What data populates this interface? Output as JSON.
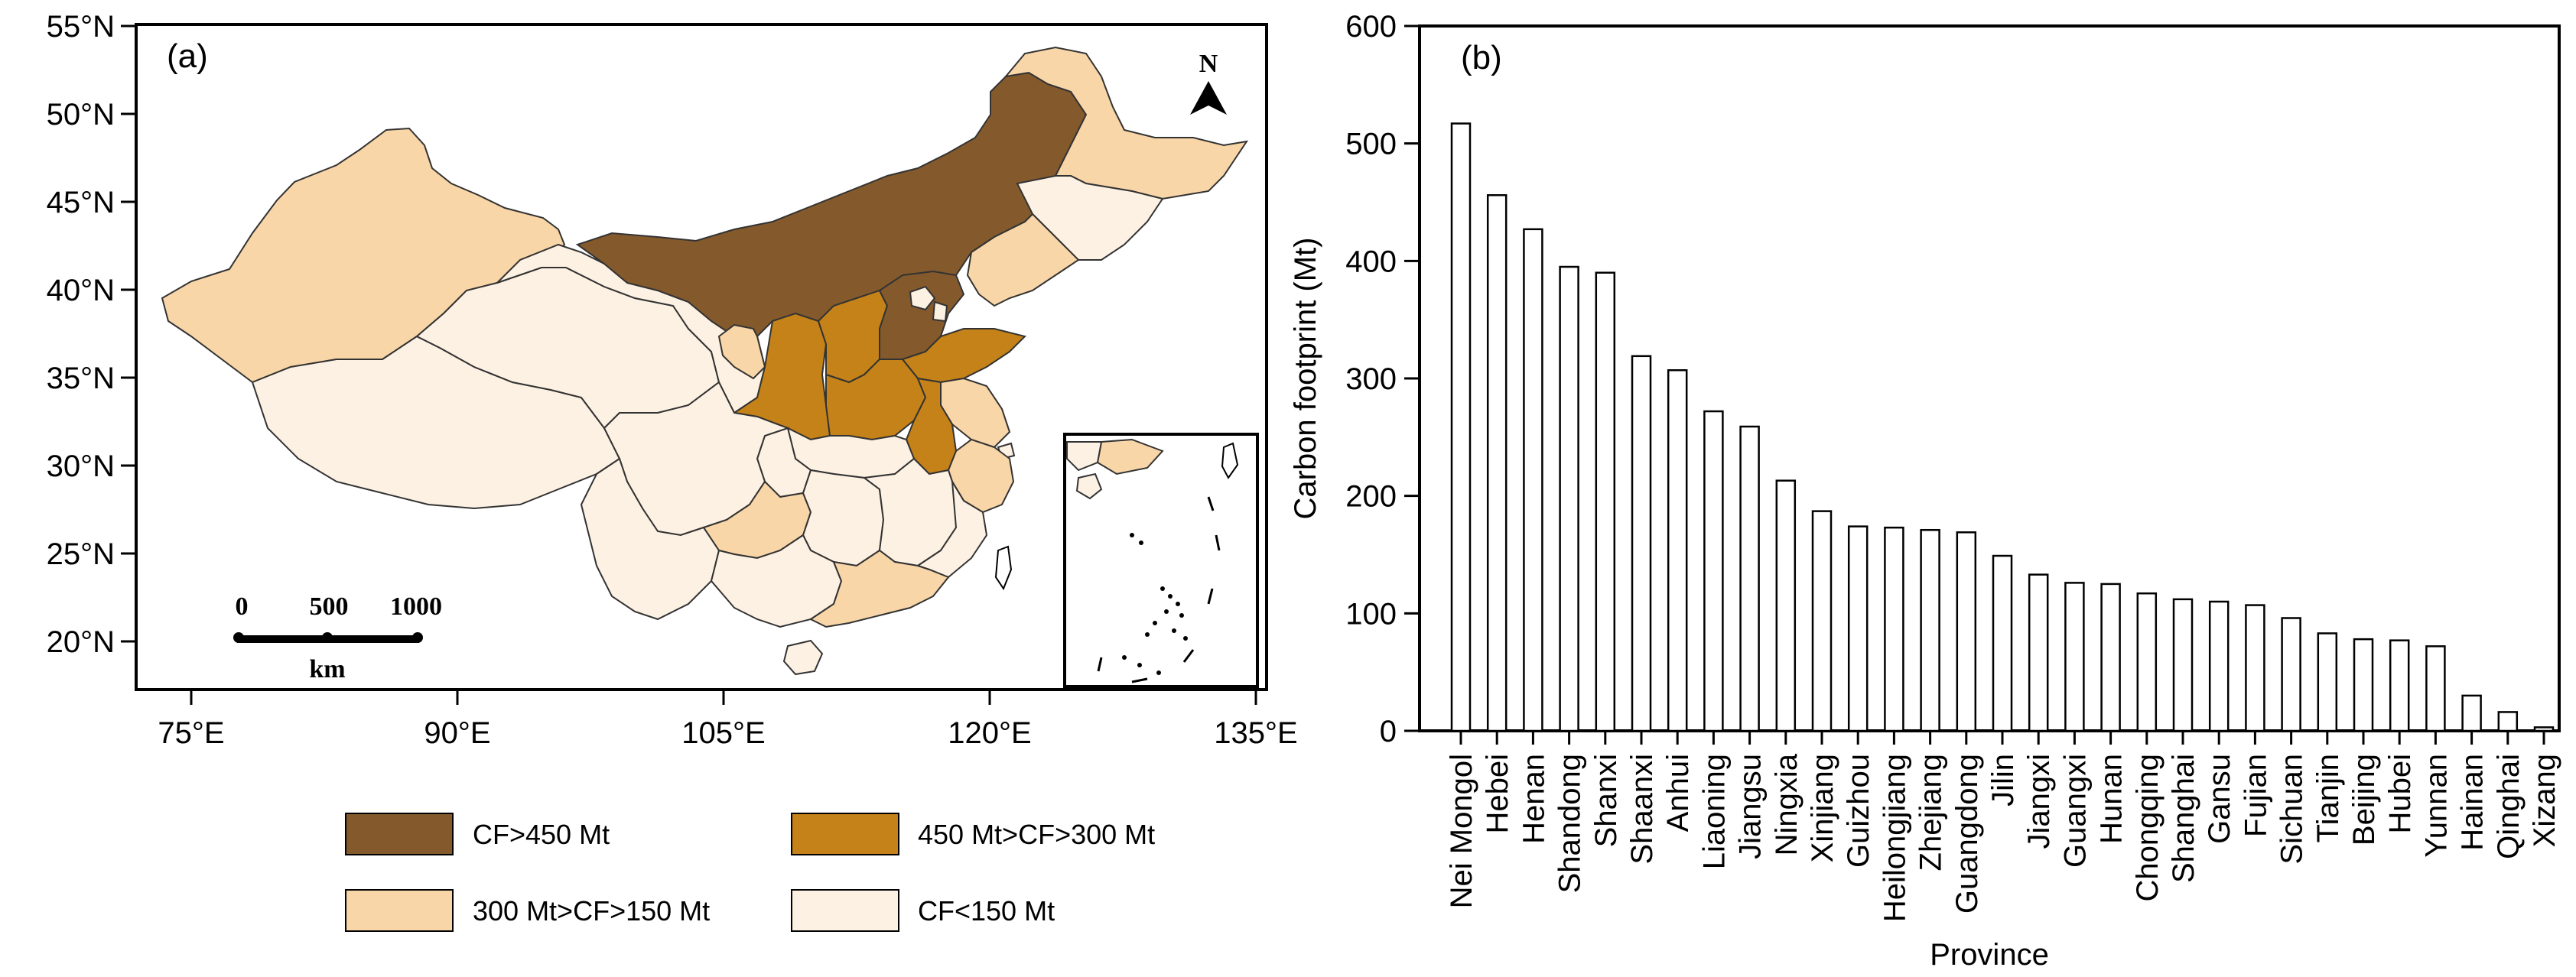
{
  "colors": {
    "very_high": "#845A2C",
    "high": "#C58218",
    "medium": "#F8D6A8",
    "low": "#FDF1E3",
    "bar_fill": "#ffffff",
    "stroke": "#000000"
  },
  "map": {
    "panel_label": "(a)",
    "lat_ticks": [
      "55°N",
      "50°N",
      "45°N",
      "40°N",
      "35°N",
      "30°N",
      "25°N",
      "20°N"
    ],
    "lon_ticks": [
      "75°E",
      "90°E",
      "105°E",
      "120°E",
      "135°E"
    ],
    "north_label": "N",
    "scale": {
      "labels": [
        "0",
        "500",
        "1000"
      ],
      "unit": "km"
    },
    "legend": [
      {
        "label": "CF>450 Mt",
        "color": "#845A2C"
      },
      {
        "label": "450 Mt>CF>300 Mt",
        "color": "#C58218"
      },
      {
        "label": "300 Mt>CF>150 Mt",
        "color": "#F8D6A8"
      },
      {
        "label": "CF<150 Mt",
        "color": "#FDF1E3"
      }
    ]
  },
  "chart_data": {
    "type": "bar",
    "panel_label": "(b)",
    "xlabel": "Province",
    "ylabel": "Carbon footprint (Mt)",
    "ylim": [
      0,
      600
    ],
    "yticks": [
      0,
      100,
      200,
      300,
      400,
      500,
      600
    ],
    "categories": [
      "Nei Mongol",
      "Hebei",
      "Henan",
      "Shandong",
      "Shanxi",
      "Shaanxi",
      "Anhui",
      "Liaoning",
      "Jiangsu",
      "Ningxia",
      "Xinjiang",
      "Guizhou",
      "Heilongjiang",
      "Zhejiang",
      "Guangdong",
      "Jilin",
      "Jiangxi",
      "Guangxi",
      "Hunan",
      "Chongqing",
      "Shanghai",
      "Gansu",
      "Fujian",
      "Sichuan",
      "Tianjin",
      "Beijing",
      "Hubei",
      "Yunnan",
      "Hainan",
      "Qinghai",
      "Xizang"
    ],
    "values": [
      517,
      456,
      427,
      395,
      390,
      319,
      307,
      272,
      259,
      213,
      187,
      174,
      173,
      171,
      169,
      149,
      133,
      126,
      125,
      117,
      112,
      110,
      107,
      96,
      83,
      78,
      77,
      72,
      30,
      16,
      3
    ]
  }
}
